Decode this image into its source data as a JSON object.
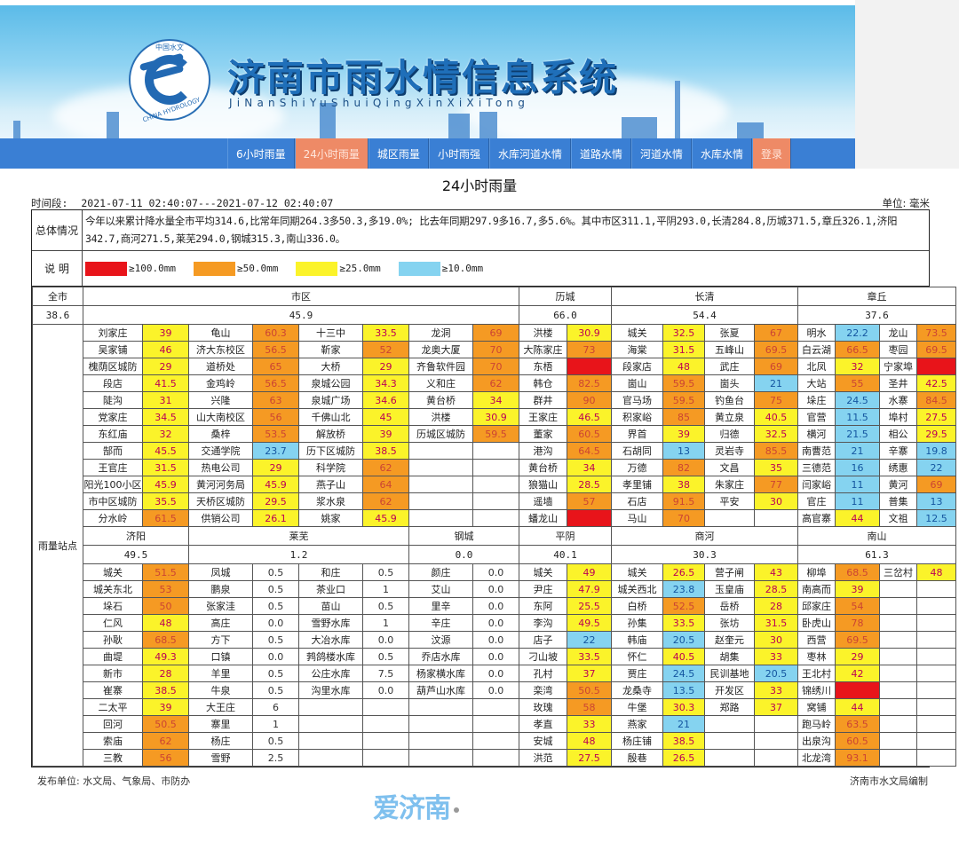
{
  "header": {
    "title": "济南市雨水情信息系统",
    "pinyin": "JiNanShiYuShuiQingXinXiXiTong",
    "logo_text_top": "中国水文",
    "logo_text_bottom": "CHINA HYDROLOGY"
  },
  "nav": {
    "items": [
      {
        "label": "6小时雨量",
        "active": false
      },
      {
        "label": "24小时雨量",
        "active": true
      },
      {
        "label": "城区雨量",
        "active": false
      },
      {
        "label": "小时雨强",
        "active": false
      },
      {
        "label": "水库河道水情",
        "active": false
      },
      {
        "label": "道路水情",
        "active": false
      },
      {
        "label": "河道水情",
        "active": false
      },
      {
        "label": "水库水情",
        "active": false
      },
      {
        "label": "登录",
        "active": false,
        "login": true
      }
    ]
  },
  "page": {
    "title": "24小时雨量",
    "period_label": "时间段:",
    "period_value": "2021-07-11 02:40:07---2021-07-12 02:40:07",
    "unit": "单位: 毫米",
    "summary_label": "总体情况",
    "summary_text": "今年以来累计降水量全市平均314.6,比常年同期264.3多50.3,多19.0%; 比去年同期297.9多16.7,多5.6%。其中市区311.1,平阴293.0,长清284.8,历城371.5,章丘326.1,济阳342.7,商河271.5,莱芜294.0,钢城315.3,南山336.0。",
    "legend_label": "说 明",
    "legend": [
      {
        "label": "≥100.0mm",
        "color": "#e8141a"
      },
      {
        "label": "≥50.0mm",
        "color": "#f59a23"
      },
      {
        "label": "≥25.0mm",
        "color": "#fbf32a"
      },
      {
        "label": "≥10.0mm",
        "color": "#85d3f0"
      }
    ],
    "side_label": "雨量站点",
    "footer_left": "发布单位: 水文局、气象局、市防办",
    "footer_right": "济南市水文局编制",
    "watermark": "爱济南"
  },
  "colors": {
    "red": "#e8141a",
    "orange": "#f59a23",
    "yellow": "#fbf32a",
    "blue": "#85d3f0",
    "nav_bg": "#3a7fd4",
    "nav_active": "#ee8a66"
  },
  "top_block": {
    "regions": [
      {
        "name": "全市",
        "avg": "38.6"
      },
      {
        "name": "市区",
        "avg": "45.9"
      },
      {
        "name": "历城",
        "avg": "66.0"
      },
      {
        "name": "长清",
        "avg": "54.4"
      },
      {
        "name": "章丘",
        "avg": "37.6"
      }
    ],
    "rows": [
      [
        [
          "刘家庄",
          "39",
          "yellow"
        ],
        [
          "龟山",
          "60.3",
          "orange"
        ],
        [
          "十三中",
          "33.5",
          "yellow"
        ],
        [
          "龙洞",
          "69",
          "orange"
        ],
        [
          "洪楼",
          "30.9",
          "yellow"
        ],
        [
          "城关",
          "32.5",
          "yellow"
        ],
        [
          "张夏",
          "67",
          "orange"
        ],
        [
          "明水",
          "22.2",
          "blue"
        ],
        [
          "龙山",
          "73.5",
          "orange"
        ]
      ],
      [
        [
          "吴家铺",
          "46",
          "yellow"
        ],
        [
          "济大东校区",
          "56.5",
          "orange"
        ],
        [
          "靳家",
          "52",
          "orange"
        ],
        [
          "龙奥大厦",
          "70",
          "orange"
        ],
        [
          "大陈家庄",
          "73",
          "orange"
        ],
        [
          "海棠",
          "31.5",
          "yellow"
        ],
        [
          "五峰山",
          "69.5",
          "orange"
        ],
        [
          "白云湖",
          "66.5",
          "orange"
        ],
        [
          "枣园",
          "69.5",
          "orange"
        ]
      ],
      [
        [
          "槐荫区城防",
          "29",
          "yellow"
        ],
        [
          "道桥处",
          "65",
          "orange"
        ],
        [
          "大桥",
          "29",
          "yellow"
        ],
        [
          "齐鲁软件园",
          "70",
          "orange"
        ],
        [
          "东梧",
          "",
          "red"
        ],
        [
          "段家店",
          "48",
          "yellow"
        ],
        [
          "武庄",
          "69",
          "orange"
        ],
        [
          "北凤",
          "32",
          "yellow"
        ],
        [
          "宁家埠",
          "",
          "red"
        ]
      ],
      [
        [
          "段店",
          "41.5",
          "yellow"
        ],
        [
          "金鸡岭",
          "56.5",
          "orange"
        ],
        [
          "泉城公园",
          "34.3",
          "yellow"
        ],
        [
          "义和庄",
          "62",
          "orange"
        ],
        [
          "韩仓",
          "82.5",
          "orange"
        ],
        [
          "崮山",
          "59.5",
          "orange"
        ],
        [
          "崮头",
          "21",
          "blue"
        ],
        [
          "大站",
          "55",
          "orange"
        ],
        [
          "圣井",
          "42.5",
          "yellow"
        ]
      ],
      [
        [
          "陡沟",
          "31",
          "yellow"
        ],
        [
          "兴隆",
          "63",
          "orange"
        ],
        [
          "泉城广场",
          "34.6",
          "yellow"
        ],
        [
          "黄台桥",
          "34",
          "yellow"
        ],
        [
          "群井",
          "90",
          "orange"
        ],
        [
          "官马场",
          "59.5",
          "orange"
        ],
        [
          "钓鱼台",
          "75",
          "orange"
        ],
        [
          "垛庄",
          "24.5",
          "blue"
        ],
        [
          "水寨",
          "84.5",
          "orange"
        ]
      ],
      [
        [
          "党家庄",
          "34.5",
          "yellow"
        ],
        [
          "山大南校区",
          "56",
          "orange"
        ],
        [
          "千佛山北",
          "45",
          "yellow"
        ],
        [
          "洪楼",
          "30.9",
          "yellow"
        ],
        [
          "王家庄",
          "46.5",
          "yellow"
        ],
        [
          "积家峪",
          "85",
          "orange"
        ],
        [
          "黄立泉",
          "40.5",
          "yellow"
        ],
        [
          "官营",
          "11.5",
          "blue"
        ],
        [
          "埠村",
          "27.5",
          "yellow"
        ]
      ],
      [
        [
          "东红庙",
          "32",
          "yellow"
        ],
        [
          "桑梓",
          "53.5",
          "orange"
        ],
        [
          "解放桥",
          "39",
          "yellow"
        ],
        [
          "历城区城防",
          "59.5",
          "orange"
        ],
        [
          "董家",
          "60.5",
          "orange"
        ],
        [
          "界首",
          "39",
          "yellow"
        ],
        [
          "归德",
          "32.5",
          "yellow"
        ],
        [
          "横河",
          "21.5",
          "blue"
        ],
        [
          "相公",
          "29.5",
          "yellow"
        ]
      ],
      [
        [
          "郜而",
          "45.5",
          "yellow"
        ],
        [
          "交通学院",
          "23.7",
          "blue"
        ],
        [
          "历下区城防",
          "38.5",
          "yellow"
        ],
        [
          "",
          "",
          "none"
        ],
        [
          "港沟",
          "64.5",
          "orange"
        ],
        [
          "石胡同",
          "13",
          "blue"
        ],
        [
          "灵岩寺",
          "85.5",
          "orange"
        ],
        [
          "南曹范",
          "21",
          "blue"
        ],
        [
          "辛寨",
          "19.8",
          "blue"
        ]
      ],
      [
        [
          "王官庄",
          "31.5",
          "yellow"
        ],
        [
          "热电公司",
          "29",
          "yellow"
        ],
        [
          "科学院",
          "62",
          "orange"
        ],
        [
          "",
          "",
          "none"
        ],
        [
          "黄台桥",
          "34",
          "yellow"
        ],
        [
          "万德",
          "82",
          "orange"
        ],
        [
          "文昌",
          "35",
          "yellow"
        ],
        [
          "三德范",
          "16",
          "blue"
        ],
        [
          "绣惠",
          "22",
          "blue"
        ]
      ],
      [
        [
          "阳光100小区",
          "45.9",
          "yellow"
        ],
        [
          "黄河河务局",
          "45.9",
          "yellow"
        ],
        [
          "燕子山",
          "64",
          "orange"
        ],
        [
          "",
          "",
          "none"
        ],
        [
          "狼猫山",
          "28.5",
          "yellow"
        ],
        [
          "孝里铺",
          "38",
          "yellow"
        ],
        [
          "朱家庄",
          "77",
          "orange"
        ],
        [
          "闫家峪",
          "11",
          "blue"
        ],
        [
          "黄河",
          "69",
          "orange"
        ]
      ],
      [
        [
          "市中区城防",
          "35.5",
          "yellow"
        ],
        [
          "天桥区城防",
          "29.5",
          "yellow"
        ],
        [
          "浆水泉",
          "62",
          "orange"
        ],
        [
          "",
          "",
          "none"
        ],
        [
          "遥墙",
          "57",
          "orange"
        ],
        [
          "石店",
          "91.5",
          "orange"
        ],
        [
          "平安",
          "30",
          "yellow"
        ],
        [
          "官庄",
          "11",
          "blue"
        ],
        [
          "普集",
          "13",
          "blue"
        ]
      ],
      [
        [
          "分水岭",
          "61.5",
          "orange"
        ],
        [
          "供销公司",
          "26.1",
          "yellow"
        ],
        [
          "姚家",
          "45.9",
          "yellow"
        ],
        [
          "",
          "",
          "none"
        ],
        [
          "蟠龙山",
          "",
          "red"
        ],
        [
          "马山",
          "70",
          "orange"
        ],
        [
          "",
          "",
          "none"
        ],
        [
          "高官寨",
          "44",
          "yellow"
        ],
        [
          "文祖",
          "12.5",
          "blue"
        ]
      ]
    ]
  },
  "bottom_block": {
    "regions": [
      {
        "name": "济阳",
        "avg": "49.5"
      },
      {
        "name": "莱芜",
        "avg": "1.2"
      },
      {
        "name": "钢城",
        "avg": "0.0"
      },
      {
        "name": "平阴",
        "avg": "40.1"
      },
      {
        "name": "商河",
        "avg": "30.3"
      },
      {
        "name": "南山",
        "avg": "61.3"
      }
    ],
    "rows": [
      [
        [
          "城关",
          "51.5",
          "orange"
        ],
        [
          "凤城",
          "0.5",
          "none"
        ],
        [
          "和庄",
          "0.5",
          "none"
        ],
        [
          "颜庄",
          "0.0",
          "none"
        ],
        [
          "城关",
          "49",
          "yellow"
        ],
        [
          "城关",
          "26.5",
          "yellow"
        ],
        [
          "营子闸",
          "43",
          "yellow"
        ],
        [
          "柳埠",
          "68.5",
          "orange"
        ],
        [
          "三岔村",
          "48",
          "yellow"
        ]
      ],
      [
        [
          "城关东北",
          "53",
          "orange"
        ],
        [
          "鹏泉",
          "0.5",
          "none"
        ],
        [
          "茶业口",
          "1",
          "none"
        ],
        [
          "艾山",
          "0.0",
          "none"
        ],
        [
          "尹庄",
          "47.9",
          "yellow"
        ],
        [
          "城关西北",
          "23.8",
          "blue"
        ],
        [
          "玉皇庙",
          "28.5",
          "yellow"
        ],
        [
          "南高而",
          "39",
          "yellow"
        ],
        [
          "",
          "",
          "none"
        ]
      ],
      [
        [
          "垛石",
          "50",
          "orange"
        ],
        [
          "张家洼",
          "0.5",
          "none"
        ],
        [
          "苗山",
          "0.5",
          "none"
        ],
        [
          "里辛",
          "0.0",
          "none"
        ],
        [
          "东阿",
          "25.5",
          "yellow"
        ],
        [
          "白桥",
          "52.5",
          "orange"
        ],
        [
          "岳桥",
          "28",
          "yellow"
        ],
        [
          "邱家庄",
          "54",
          "orange"
        ],
        [
          "",
          "",
          "none"
        ]
      ],
      [
        [
          "仁风",
          "48",
          "yellow"
        ],
        [
          "高庄",
          "0.0",
          "none"
        ],
        [
          "雪野水库",
          "1",
          "none"
        ],
        [
          "辛庄",
          "0.0",
          "none"
        ],
        [
          "李沟",
          "49.5",
          "yellow"
        ],
        [
          "孙集",
          "33.5",
          "yellow"
        ],
        [
          "张坊",
          "31.5",
          "yellow"
        ],
        [
          "卧虎山",
          "78",
          "orange"
        ],
        [
          "",
          "",
          "none"
        ]
      ],
      [
        [
          "孙耿",
          "68.5",
          "orange"
        ],
        [
          "方下",
          "0.5",
          "none"
        ],
        [
          "大冶水库",
          "0.0",
          "none"
        ],
        [
          "汶源",
          "0.0",
          "none"
        ],
        [
          "店子",
          "22",
          "blue"
        ],
        [
          "韩庙",
          "20.5",
          "blue"
        ],
        [
          "赵奎元",
          "30",
          "yellow"
        ],
        [
          "西营",
          "69.5",
          "orange"
        ],
        [
          "",
          "",
          "none"
        ]
      ],
      [
        [
          "曲堤",
          "49.3",
          "yellow"
        ],
        [
          "口镇",
          "0.0",
          "none"
        ],
        [
          "鹁鸽楼水库",
          "0.5",
          "none"
        ],
        [
          "乔店水库",
          "0.0",
          "none"
        ],
        [
          "刁山坡",
          "33.5",
          "yellow"
        ],
        [
          "怀仁",
          "40.5",
          "yellow"
        ],
        [
          "胡集",
          "33",
          "yellow"
        ],
        [
          "枣林",
          "29",
          "yellow"
        ],
        [
          "",
          "",
          "none"
        ]
      ],
      [
        [
          "新市",
          "28",
          "yellow"
        ],
        [
          "羊里",
          "0.5",
          "none"
        ],
        [
          "公庄水库",
          "7.5",
          "none"
        ],
        [
          "杨家横水库",
          "0.0",
          "none"
        ],
        [
          "孔村",
          "37",
          "yellow"
        ],
        [
          "贾庄",
          "24.5",
          "blue"
        ],
        [
          "民训基地",
          "20.5",
          "blue"
        ],
        [
          "王北村",
          "42",
          "yellow"
        ],
        [
          "",
          "",
          "none"
        ]
      ],
      [
        [
          "崔寨",
          "38.5",
          "yellow"
        ],
        [
          "牛泉",
          "0.5",
          "none"
        ],
        [
          "沟里水库",
          "0.0",
          "none"
        ],
        [
          "葫芦山水库",
          "0.0",
          "none"
        ],
        [
          "栾湾",
          "50.5",
          "orange"
        ],
        [
          "龙桑寺",
          "13.5",
          "blue"
        ],
        [
          "开发区",
          "33",
          "yellow"
        ],
        [
          "锦绣川",
          "",
          "red"
        ],
        [
          "",
          "",
          "none"
        ]
      ],
      [
        [
          "二太平",
          "39",
          "yellow"
        ],
        [
          "大王庄",
          "6",
          "none"
        ],
        [
          "",
          "",
          "none"
        ],
        [
          "",
          "",
          "none"
        ],
        [
          "玫瑰",
          "58",
          "orange"
        ],
        [
          "牛堡",
          "30.3",
          "yellow"
        ],
        [
          "郑路",
          "37",
          "yellow"
        ],
        [
          "窝铺",
          "44",
          "yellow"
        ],
        [
          "",
          "",
          "none"
        ]
      ],
      [
        [
          "回河",
          "50.5",
          "orange"
        ],
        [
          "寨里",
          "1",
          "none"
        ],
        [
          "",
          "",
          "none"
        ],
        [
          "",
          "",
          "none"
        ],
        [
          "孝直",
          "33",
          "yellow"
        ],
        [
          "燕家",
          "21",
          "blue"
        ],
        [
          "",
          "",
          "none"
        ],
        [
          "跑马岭",
          "63.5",
          "orange"
        ],
        [
          "",
          "",
          "none"
        ]
      ],
      [
        [
          "索庙",
          "62",
          "orange"
        ],
        [
          "杨庄",
          "0.5",
          "none"
        ],
        [
          "",
          "",
          "none"
        ],
        [
          "",
          "",
          "none"
        ],
        [
          "安城",
          "48",
          "yellow"
        ],
        [
          "杨庄铺",
          "38.5",
          "yellow"
        ],
        [
          "",
          "",
          "none"
        ],
        [
          "出泉沟",
          "60.5",
          "orange"
        ],
        [
          "",
          "",
          "none"
        ]
      ],
      [
        [
          "三教",
          "56",
          "orange"
        ],
        [
          "雪野",
          "2.5",
          "none"
        ],
        [
          "",
          "",
          "none"
        ],
        [
          "",
          "",
          "none"
        ],
        [
          "洪范",
          "27.5",
          "yellow"
        ],
        [
          "殷巷",
          "26.5",
          "yellow"
        ],
        [
          "",
          "",
          "none"
        ],
        [
          "北龙湾",
          "93.1",
          "orange"
        ],
        [
          "",
          "",
          "none"
        ]
      ]
    ]
  }
}
